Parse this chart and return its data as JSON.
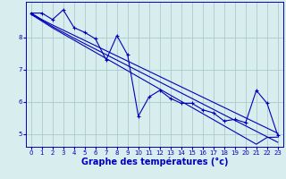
{
  "background_color": "#d8eeee",
  "grid_color": "#aacccc",
  "line_color": "#0000bb",
  "marker_color": "#0000bb",
  "xlabel": "Graphe des températures (°c)",
  "xlabel_fontsize": 7,
  "xlim": [
    -0.5,
    23.5
  ],
  "ylim": [
    4.6,
    9.1
  ],
  "yticks": [
    5,
    6,
    7,
    8
  ],
  "xticks": [
    0,
    1,
    2,
    3,
    4,
    5,
    6,
    7,
    8,
    9,
    10,
    11,
    12,
    13,
    14,
    15,
    16,
    17,
    18,
    19,
    20,
    21,
    22,
    23
  ],
  "zigzag": [
    8.75,
    8.75,
    8.55,
    8.85,
    8.3,
    8.15,
    7.95,
    7.3,
    8.05,
    7.45,
    5.55,
    6.15,
    6.35,
    6.1,
    5.95,
    5.95,
    5.75,
    5.65,
    5.4,
    5.45,
    5.35,
    6.35,
    5.95,
    4.95
  ],
  "straight_lines": [
    [
      8.75,
      8.55,
      8.38,
      8.22,
      8.06,
      7.9,
      7.74,
      7.58,
      7.42,
      7.26,
      7.1,
      6.94,
      6.78,
      6.62,
      6.46,
      6.3,
      6.14,
      5.98,
      5.82,
      5.66,
      5.5,
      5.34,
      5.18,
      5.02
    ],
    [
      8.73,
      8.53,
      8.33,
      8.15,
      7.97,
      7.8,
      7.63,
      7.46,
      7.29,
      7.12,
      6.95,
      6.78,
      6.61,
      6.44,
      6.27,
      6.1,
      5.93,
      5.76,
      5.59,
      5.42,
      5.25,
      5.08,
      4.91,
      4.74
    ],
    [
      8.71,
      8.5,
      8.29,
      8.1,
      7.91,
      7.72,
      7.53,
      7.34,
      7.15,
      6.96,
      6.77,
      6.58,
      6.39,
      6.2,
      6.01,
      5.82,
      5.63,
      5.44,
      5.25,
      5.06,
      4.87,
      4.68,
      4.89,
      4.9
    ]
  ]
}
